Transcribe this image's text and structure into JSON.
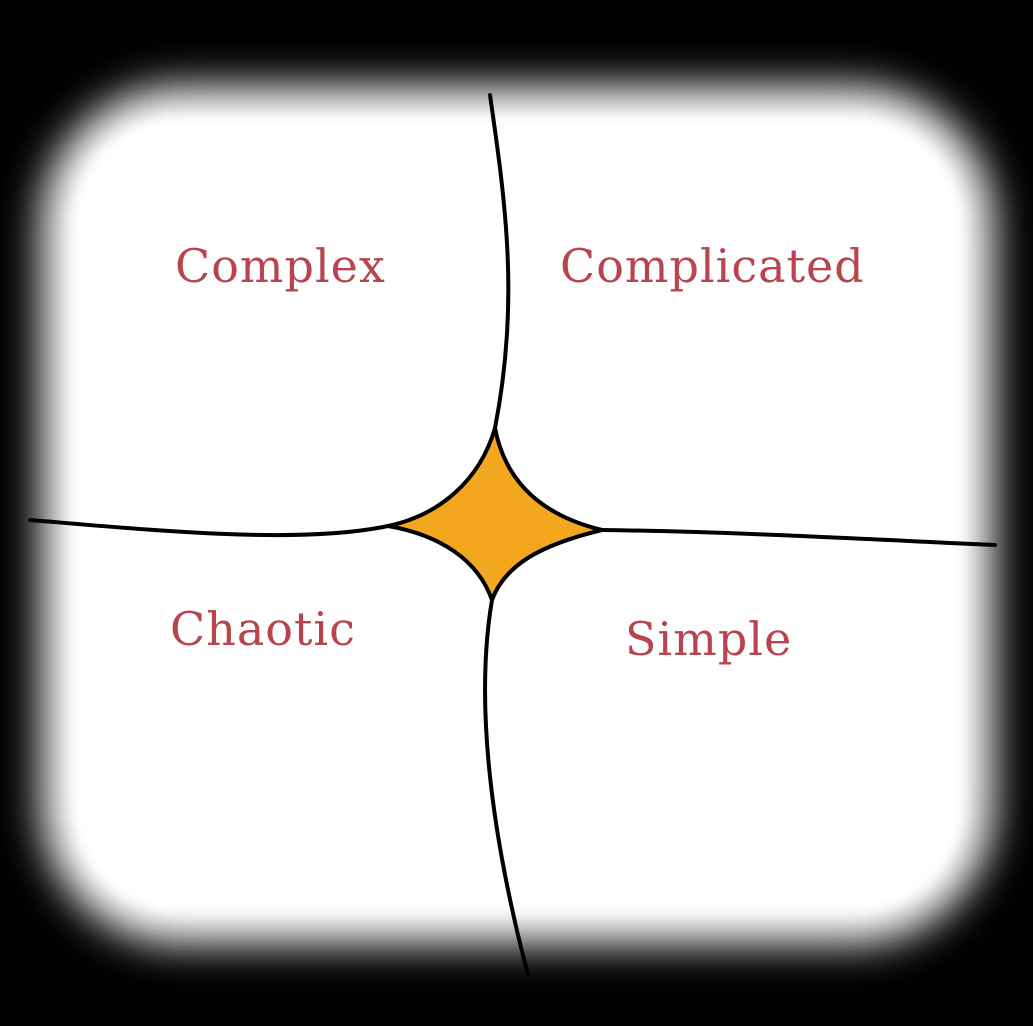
{
  "diagram": {
    "title": "",
    "domains": {
      "complex": "Complex",
      "complicated": "Complicated",
      "chaotic": "Chaotic",
      "simple": "Simple"
    },
    "colors": {
      "background": "#000000",
      "canvas": "#ffffff",
      "label": "#b8454e",
      "line": "#000000",
      "center_fill": "#f2a71f"
    }
  }
}
